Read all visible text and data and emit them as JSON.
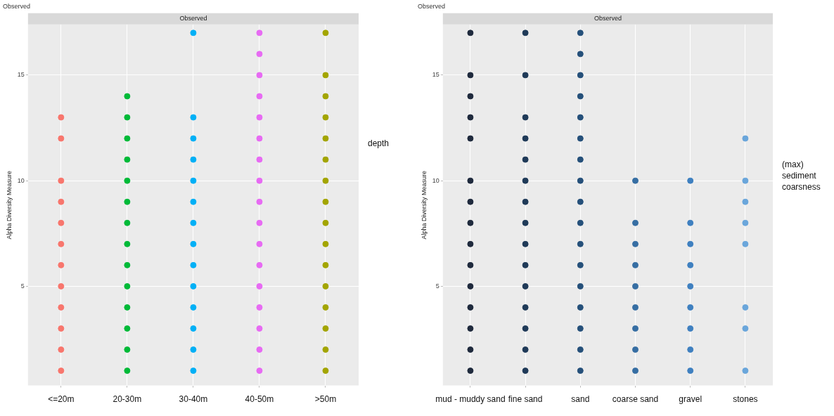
{
  "chart_data": [
    {
      "type": "scatter",
      "title": "Observed",
      "subtitle": "Observed",
      "ylabel": "Alpha Diversity Measure",
      "legend_title": "depth",
      "categories": [
        "<=20m",
        "20-30m",
        "30-40m",
        "40-50m",
        ">50m"
      ],
      "ylim": [
        0.3,
        17.4
      ],
      "yticks": [
        5,
        10,
        15
      ],
      "grid": true,
      "marker": "circle",
      "series": [
        {
          "color": "#f8766d",
          "x": [
            "<=20m",
            "<=20m",
            "<=20m",
            "<=20m",
            "<=20m",
            "<=20m",
            "<=20m",
            "<=20m",
            "<=20m",
            "<=20m",
            "<=20m",
            "<=20m"
          ],
          "values": [
            1,
            2,
            3,
            4,
            5,
            6,
            7,
            8,
            9,
            10,
            12,
            13
          ]
        },
        {
          "color": "#00ba38",
          "x": [
            "20-30m",
            "20-30m",
            "20-30m",
            "20-30m",
            "20-30m",
            "20-30m",
            "20-30m",
            "20-30m",
            "20-30m",
            "20-30m",
            "20-30m",
            "20-30m",
            "20-30m",
            "20-30m"
          ],
          "values": [
            1,
            2,
            3,
            4,
            5,
            6,
            7,
            8,
            9,
            10,
            11,
            12,
            13,
            14
          ]
        },
        {
          "color": "#00b0f6",
          "x": [
            "30-40m",
            "30-40m",
            "30-40m",
            "30-40m",
            "30-40m",
            "30-40m",
            "30-40m",
            "30-40m",
            "30-40m",
            "30-40m",
            "30-40m",
            "30-40m",
            "30-40m",
            "30-40m"
          ],
          "values": [
            1,
            2,
            3,
            4,
            5,
            6,
            7,
            8,
            9,
            10,
            11,
            12,
            13,
            17
          ]
        },
        {
          "color": "#e76bf3",
          "x": [
            "40-50m",
            "40-50m",
            "40-50m",
            "40-50m",
            "40-50m",
            "40-50m",
            "40-50m",
            "40-50m",
            "40-50m",
            "40-50m",
            "40-50m",
            "40-50m",
            "40-50m",
            "40-50m",
            "40-50m",
            "40-50m",
            "40-50m"
          ],
          "values": [
            1,
            2,
            3,
            4,
            5,
            6,
            7,
            8,
            9,
            10,
            11,
            12,
            13,
            14,
            15,
            16,
            17
          ]
        },
        {
          "color": "#a3a500",
          "x": [
            ">50m",
            ">50m",
            ">50m",
            ">50m",
            ">50m",
            ">50m",
            ">50m",
            ">50m",
            ">50m",
            ">50m",
            ">50m",
            ">50m",
            ">50m",
            ">50m",
            ">50m",
            ">50m"
          ],
          "values": [
            1,
            2,
            3,
            4,
            5,
            6,
            7,
            8,
            9,
            10,
            11,
            12,
            13,
            14,
            15,
            17
          ]
        }
      ]
    },
    {
      "type": "scatter",
      "title": "Observed",
      "subtitle": "Observed",
      "ylabel": "Alpha Diversity Measure",
      "legend_title": "(max) sediment coarsness",
      "categories": [
        "mud - muddy sand",
        "fine sand",
        "sand",
        "coarse sand",
        "gravel",
        "stones"
      ],
      "ylim": [
        0.3,
        17.4
      ],
      "yticks": [
        5,
        10,
        15
      ],
      "grid": true,
      "marker": "circle",
      "series": [
        {
          "color": "#1f2a3d",
          "x": [
            "mud - muddy sand",
            "mud - muddy sand",
            "mud - muddy sand",
            "mud - muddy sand",
            "mud - muddy sand",
            "mud - muddy sand",
            "mud - muddy sand",
            "mud - muddy sand",
            "mud - muddy sand",
            "mud - muddy sand",
            "mud - muddy sand",
            "mud - muddy sand",
            "mud - muddy sand",
            "mud - muddy sand",
            "mud - muddy sand"
          ],
          "values": [
            1,
            2,
            3,
            4,
            5,
            6,
            7,
            8,
            9,
            10,
            12,
            13,
            14,
            15,
            17
          ]
        },
        {
          "color": "#1f3a58",
          "x": [
            "fine sand",
            "fine sand",
            "fine sand",
            "fine sand",
            "fine sand",
            "fine sand",
            "fine sand",
            "fine sand",
            "fine sand",
            "fine sand",
            "fine sand",
            "fine sand",
            "fine sand",
            "fine sand",
            "fine sand"
          ],
          "values": [
            1,
            2,
            3,
            4,
            5,
            6,
            7,
            8,
            9,
            10,
            11,
            12,
            13,
            15,
            17
          ]
        },
        {
          "color": "#25507a",
          "x": [
            "sand",
            "sand",
            "sand",
            "sand",
            "sand",
            "sand",
            "sand",
            "sand",
            "sand",
            "sand",
            "sand",
            "sand",
            "sand",
            "sand",
            "sand",
            "sand",
            "sand"
          ],
          "values": [
            1,
            2,
            3,
            4,
            5,
            6,
            7,
            8,
            9,
            10,
            11,
            12,
            13,
            14,
            15,
            16,
            17
          ]
        },
        {
          "color": "#366ea3",
          "x": [
            "coarse sand",
            "coarse sand",
            "coarse sand",
            "coarse sand",
            "coarse sand",
            "coarse sand",
            "coarse sand",
            "coarse sand",
            "coarse sand"
          ],
          "values": [
            1,
            2,
            3,
            4,
            5,
            6,
            7,
            8,
            10
          ]
        },
        {
          "color": "#3f80c0",
          "x": [
            "gravel",
            "gravel",
            "gravel",
            "gravel",
            "gravel",
            "gravel",
            "gravel",
            "gravel",
            "gravel"
          ],
          "values": [
            1,
            2,
            3,
            4,
            5,
            6,
            7,
            8,
            10
          ]
        },
        {
          "color": "#6aa6db",
          "x": [
            "stones",
            "stones",
            "stones",
            "stones",
            "stones",
            "stones",
            "stones",
            "stones"
          ],
          "values": [
            1,
            3,
            4,
            7,
            8,
            9,
            10,
            12
          ]
        }
      ]
    }
  ]
}
